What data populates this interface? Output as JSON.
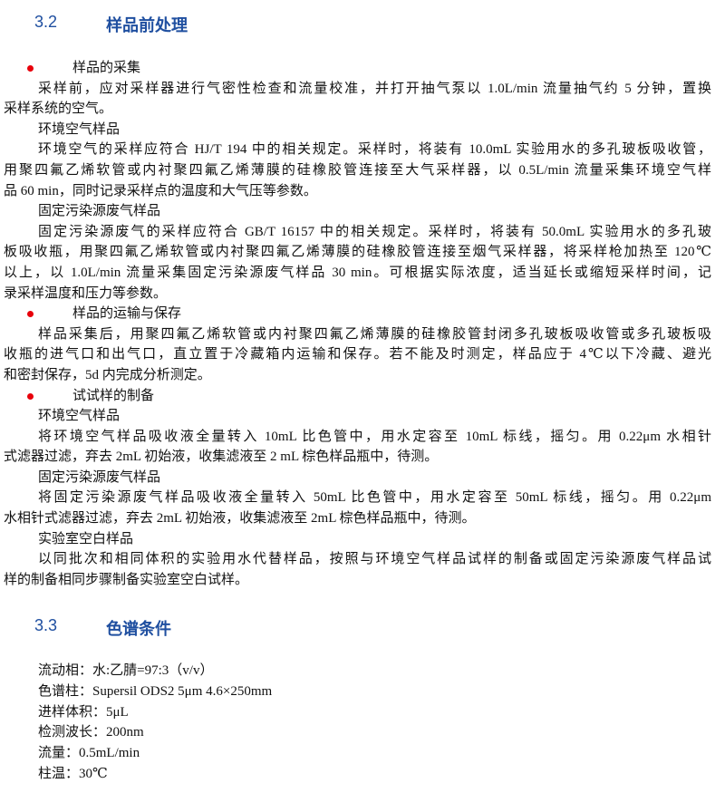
{
  "sections": [
    {
      "number": "3.2",
      "title": "样品前处理"
    },
    {
      "number": "3.3",
      "title": "色谱条件"
    }
  ],
  "bullet_color": "#e8000b",
  "heading_color": "#1f4fa0",
  "body": [
    {
      "type": "bullet",
      "text": "样品的采集"
    },
    {
      "type": "para",
      "lines": [
        "采样前，应对采样器进行气密性检查和流量校准，并打开抽气泵以 1.0L/min 流量抽气约 5 分钟，置换",
        "采样系统的空气。"
      ]
    },
    {
      "type": "sub",
      "text": "环境空气样品"
    },
    {
      "type": "para",
      "lines": [
        "环境空气的采样应符合 HJ/T 194 中的相关规定。采样时，将装有 10.0mL 实验用水的多孔玻板吸收管，",
        "用聚四氟乙烯软管或内衬聚四氟乙烯薄膜的硅橡胶管连接至大气采样器，以 0.5L/min 流量采集环境空气样",
        "品 60 min，同时记录采样点的温度和大气压等参数。"
      ]
    },
    {
      "type": "sub",
      "text": "固定污染源废气样品"
    },
    {
      "type": "para",
      "lines": [
        "固定污染源废气的采样应符合 GB/T 16157 中的相关规定。采样时，将装有 50.0mL 实验用水的多孔玻",
        "板吸收瓶，用聚四氟乙烯软管或内衬聚四氟乙烯薄膜的硅橡胶管连接至烟气采样器，将采样枪加热至 120℃",
        "以上，以 1.0L/min 流量采集固定污染源废气样品 30 min。可根据实际浓度，适当延长或缩短采样时间，记",
        "录采样温度和压力等参数。"
      ]
    },
    {
      "type": "bullet",
      "text": "样品的运输与保存"
    },
    {
      "type": "para",
      "lines": [
        "样品采集后，用聚四氟乙烯软管或内衬聚四氟乙烯薄膜的硅橡胶管封闭多孔玻板吸收管或多孔玻板吸",
        "收瓶的进气口和出气口，直立置于冷藏箱内运输和保存。若不能及时测定，样品应于 4℃以下冷藏、避光",
        "和密封保存，5d 内完成分析测定。"
      ]
    },
    {
      "type": "bullet",
      "text": "试试样的制备"
    },
    {
      "type": "sub",
      "text": "环境空气样品"
    },
    {
      "type": "para",
      "lines": [
        "将环境空气样品吸收液全量转入 10mL 比色管中，用水定容至 10mL 标线，摇匀。用 0.22μm 水相针",
        "式滤器过滤，弃去 2mL 初始液，收集滤液至 2 mL 棕色样品瓶中，待测。"
      ]
    },
    {
      "type": "sub",
      "text": "固定污染源废气样品"
    },
    {
      "type": "para",
      "lines": [
        "将固定污染源废气样品吸收液全量转入 50mL 比色管中，用水定容至 50mL 标线，摇匀。用 0.22μm",
        "水相针式滤器过滤，弃去 2mL 初始液，收集滤液至 2mL 棕色样品瓶中，待测。"
      ]
    },
    {
      "type": "sub",
      "text": "实验室空白样品"
    },
    {
      "type": "para",
      "lines": [
        "以同批次和相同体积的实验用水代替样品，按照与环境空气样品试样的制备或固定污染源废气样品试",
        "样的制备相同步骤制备实验室空白试样。"
      ]
    }
  ],
  "conditions": [
    "流动相：水:乙腈=97:3（v/v）",
    "色谱柱：Supersil ODS2 5μm 4.6×250mm",
    "进样体积：5μL",
    "检测波长：200nm",
    "流量：0.5mL/min",
    "柱温：30℃"
  ]
}
